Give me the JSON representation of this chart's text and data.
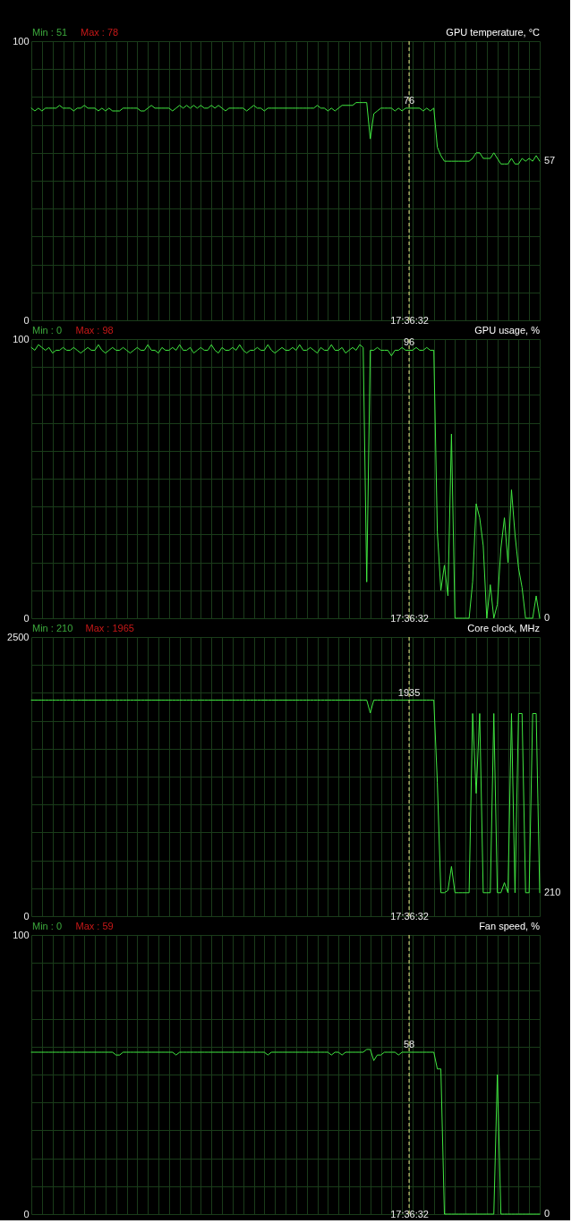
{
  "chart_data": [
    {
      "type": "line",
      "title": "GPU temperature, °C",
      "annotations": [
        "Min : 51",
        "Max : 78"
      ],
      "categories": [
        null,
        null,
        null,
        null,
        null,
        null,
        null,
        null,
        null,
        null,
        null,
        null,
        null,
        null,
        null,
        null,
        null,
        null,
        null,
        null,
        null,
        null,
        null,
        null,
        null,
        null,
        null,
        null,
        null,
        null,
        null,
        null,
        null,
        null,
        null,
        null,
        null,
        null,
        null,
        null,
        null,
        null,
        null,
        null,
        null,
        null,
        null,
        null,
        null,
        null,
        null,
        null,
        null,
        null,
        null,
        null,
        null,
        null,
        null,
        null,
        null,
        null,
        null,
        null,
        null,
        null,
        null,
        null,
        null,
        null,
        null,
        null,
        null,
        null,
        null,
        null,
        null,
        null,
        null,
        null,
        null,
        null,
        null,
        null,
        null,
        null,
        null,
        null,
        null,
        null,
        null,
        null,
        null,
        null,
        null,
        null,
        null,
        null,
        null,
        null,
        null,
        null,
        null,
        null,
        null,
        null,
        null,
        "17:36:32",
        null,
        null,
        null,
        null,
        null,
        null,
        null,
        null,
        null,
        null,
        null,
        null,
        null,
        null,
        null,
        null,
        null,
        null,
        null,
        null,
        null,
        null,
        null,
        null,
        null,
        null,
        null,
        null,
        null,
        null,
        null,
        null,
        null,
        null,
        null,
        null,
        null
      ],
      "series": [
        {
          "color": "#40e840",
          "values": [
            76,
            75,
            76,
            75,
            76,
            76,
            76,
            76,
            77,
            76,
            76,
            76,
            75,
            76,
            76,
            77,
            76,
            76,
            76,
            75,
            76,
            75,
            76,
            75,
            75,
            75,
            76,
            76,
            76,
            76,
            76,
            75,
            75,
            76,
            77,
            76,
            76,
            76,
            76,
            76,
            75,
            76,
            77,
            76,
            77,
            76,
            77,
            76,
            77,
            76,
            76,
            77,
            76,
            77,
            76,
            75,
            76,
            76,
            76,
            76,
            76,
            75,
            76,
            77,
            76,
            76,
            75,
            76,
            76,
            76,
            76,
            76,
            76,
            76,
            76,
            76,
            76,
            76,
            76,
            76,
            76,
            77,
            76,
            76,
            75,
            76,
            75,
            76,
            77,
            77,
            77,
            77,
            78,
            78,
            78,
            78,
            65,
            74,
            75,
            76,
            76,
            76,
            76,
            75,
            76,
            75,
            76,
            76,
            76,
            76,
            76,
            75,
            76,
            75,
            76,
            62,
            59,
            57,
            57,
            57,
            57,
            57,
            57,
            57,
            57,
            58,
            60,
            60,
            58,
            58,
            58,
            60,
            58,
            56,
            56,
            56,
            58,
            56,
            56,
            58,
            57,
            58,
            57,
            59,
            57
          ],
          "value_labels": [
            null,
            null,
            null,
            null,
            null,
            null,
            null,
            null,
            null,
            null,
            null,
            null,
            null,
            null,
            null,
            null,
            null,
            null,
            null,
            null,
            null,
            null,
            null,
            null,
            null,
            null,
            null,
            null,
            null,
            null,
            null,
            null,
            null,
            null,
            null,
            null,
            null,
            null,
            null,
            null,
            null,
            null,
            null,
            null,
            null,
            null,
            null,
            null,
            null,
            null,
            null,
            null,
            null,
            null,
            null,
            null,
            null,
            null,
            null,
            null,
            null,
            null,
            null,
            null,
            null,
            null,
            null,
            null,
            null,
            null,
            null,
            null,
            null,
            null,
            null,
            null,
            null,
            null,
            null,
            null,
            null,
            null,
            null,
            null,
            null,
            null,
            null,
            null,
            null,
            null,
            null,
            null,
            null,
            null,
            null,
            null,
            null,
            null,
            null,
            null,
            null,
            null,
            null,
            null,
            null,
            null,
            null,
            "76",
            null,
            null,
            null,
            null,
            null,
            null,
            null,
            null,
            null,
            null,
            null,
            null,
            null,
            null,
            null,
            null,
            null,
            null,
            null,
            null,
            null,
            null,
            null,
            null,
            null,
            null,
            null,
            null,
            null,
            null,
            null,
            null,
            null,
            null,
            null,
            null,
            "57"
          ]
        }
      ],
      "ylim": [
        0,
        100
      ],
      "yticks": [
        0,
        {
          "value": 10,
          "label": null
        },
        {
          "value": 20,
          "label": null
        },
        {
          "value": 30,
          "label": null
        },
        {
          "value": 40,
          "label": null
        },
        {
          "value": 50,
          "label": null
        },
        {
          "value": 60,
          "label": null
        },
        {
          "value": 70,
          "label": null
        },
        {
          "value": 80,
          "label": null
        },
        {
          "value": 90,
          "label": null
        },
        100
      ],
      "grid": true,
      "ref_lines": [
        {
          "axis": "x",
          "value": "17:36:32",
          "color": "#f0e68c",
          "line_style": "dashed"
        }
      ]
    },
    {
      "type": "line",
      "title": "GPU usage, %",
      "annotations": [
        "Min : 0",
        "Max : 98"
      ],
      "categories": [
        null,
        null,
        null,
        null,
        null,
        null,
        null,
        null,
        null,
        null,
        null,
        null,
        null,
        null,
        null,
        null,
        null,
        null,
        null,
        null,
        null,
        null,
        null,
        null,
        null,
        null,
        null,
        null,
        null,
        null,
        null,
        null,
        null,
        null,
        null,
        null,
        null,
        null,
        null,
        null,
        null,
        null,
        null,
        null,
        null,
        null,
        null,
        null,
        null,
        null,
        null,
        null,
        null,
        null,
        null,
        null,
        null,
        null,
        null,
        null,
        null,
        null,
        null,
        null,
        null,
        null,
        null,
        null,
        null,
        null,
        null,
        null,
        null,
        null,
        null,
        null,
        null,
        null,
        null,
        null,
        null,
        null,
        null,
        null,
        null,
        null,
        null,
        null,
        null,
        null,
        null,
        null,
        null,
        null,
        null,
        null,
        null,
        null,
        null,
        null,
        null,
        null,
        null,
        null,
        null,
        null,
        null,
        "17:36:32",
        null,
        null,
        null,
        null,
        null,
        null,
        null,
        null,
        null,
        null,
        null,
        null,
        null,
        null,
        null,
        null,
        null,
        null,
        null,
        null,
        null,
        null,
        null,
        null,
        null,
        null,
        null,
        null,
        null,
        null,
        null,
        null,
        null,
        null,
        null,
        null,
        null
      ],
      "series": [
        {
          "color": "#40e840",
          "values": [
            97,
            96,
            98,
            97,
            96,
            97,
            95,
            96,
            96,
            97,
            96,
            96,
            97,
            96,
            95,
            96,
            97,
            96,
            96,
            98,
            96,
            95,
            96,
            97,
            96,
            96,
            97,
            96,
            95,
            96,
            97,
            96,
            96,
            98,
            96,
            96,
            95,
            97,
            96,
            96,
            97,
            96,
            98,
            96,
            96,
            97,
            95,
            96,
            97,
            96,
            96,
            98,
            96,
            95,
            97,
            96,
            96,
            97,
            96,
            98,
            96,
            95,
            96,
            96,
            97,
            96,
            96,
            98,
            96,
            95,
            96,
            97,
            96,
            96,
            97,
            96,
            98,
            96,
            96,
            97,
            96,
            95,
            97,
            96,
            96,
            98,
            96,
            96,
            97,
            95,
            96,
            97,
            96,
            98,
            97,
            13,
            96,
            96,
            97,
            96,
            96,
            96,
            94,
            96,
            96,
            97,
            96,
            96,
            96,
            97,
            96,
            96,
            97,
            96,
            96,
            31,
            10,
            19,
            8,
            66,
            0,
            0,
            0,
            0,
            0,
            13,
            41,
            36,
            26,
            0,
            12,
            0,
            5,
            25,
            36,
            20,
            46,
            30,
            18,
            11,
            0,
            0,
            0,
            8,
            0
          ],
          "value_labels": [
            null,
            null,
            null,
            null,
            null,
            null,
            null,
            null,
            null,
            null,
            null,
            null,
            null,
            null,
            null,
            null,
            null,
            null,
            null,
            null,
            null,
            null,
            null,
            null,
            null,
            null,
            null,
            null,
            null,
            null,
            null,
            null,
            null,
            null,
            null,
            null,
            null,
            null,
            null,
            null,
            null,
            null,
            null,
            null,
            null,
            null,
            null,
            null,
            null,
            null,
            null,
            null,
            null,
            null,
            null,
            null,
            null,
            null,
            null,
            null,
            null,
            null,
            null,
            null,
            null,
            null,
            null,
            null,
            null,
            null,
            null,
            null,
            null,
            null,
            null,
            null,
            null,
            null,
            null,
            null,
            null,
            null,
            null,
            null,
            null,
            null,
            null,
            null,
            null,
            null,
            null,
            null,
            null,
            null,
            null,
            null,
            null,
            null,
            null,
            null,
            null,
            null,
            null,
            null,
            null,
            null,
            null,
            "96",
            null,
            null,
            null,
            null,
            null,
            null,
            null,
            null,
            null,
            null,
            null,
            null,
            null,
            null,
            null,
            null,
            null,
            null,
            null,
            null,
            null,
            null,
            null,
            null,
            null,
            null,
            null,
            null,
            null,
            null,
            null,
            null,
            null,
            null,
            null,
            null,
            "0"
          ]
        }
      ],
      "ylim": [
        0,
        100
      ],
      "yticks": [
        0,
        {
          "value": 10,
          "label": null
        },
        {
          "value": 20,
          "label": null
        },
        {
          "value": 30,
          "label": null
        },
        {
          "value": 40,
          "label": null
        },
        {
          "value": 50,
          "label": null
        },
        {
          "value": 60,
          "label": null
        },
        {
          "value": 70,
          "label": null
        },
        {
          "value": 80,
          "label": null
        },
        {
          "value": 90,
          "label": null
        },
        100
      ],
      "grid": true,
      "ref_lines": [
        {
          "axis": "x",
          "value": "17:36:32",
          "color": "#f0e68c",
          "line_style": "dashed"
        }
      ]
    },
    {
      "type": "line",
      "title": "Core clock, MHz",
      "annotations": [
        "Min : 210",
        "Max : 1965"
      ],
      "categories": [
        null,
        null,
        null,
        null,
        null,
        null,
        null,
        null,
        null,
        null,
        null,
        null,
        null,
        null,
        null,
        null,
        null,
        null,
        null,
        null,
        null,
        null,
        null,
        null,
        null,
        null,
        null,
        null,
        null,
        null,
        null,
        null,
        null,
        null,
        null,
        null,
        null,
        null,
        null,
        null,
        null,
        null,
        null,
        null,
        null,
        null,
        null,
        null,
        null,
        null,
        null,
        null,
        null,
        null,
        null,
        null,
        null,
        null,
        null,
        null,
        null,
        null,
        null,
        null,
        null,
        null,
        null,
        null,
        null,
        null,
        null,
        null,
        null,
        null,
        null,
        null,
        null,
        null,
        null,
        null,
        null,
        null,
        null,
        null,
        null,
        null,
        null,
        null,
        null,
        null,
        null,
        null,
        null,
        null,
        null,
        null,
        null,
        null,
        null,
        null,
        null,
        null,
        null,
        null,
        null,
        null,
        null,
        "17:36:32",
        null,
        null,
        null,
        null,
        null,
        null,
        null,
        null,
        null,
        null,
        null,
        null,
        null,
        null,
        null,
        null,
        null,
        null,
        null,
        null,
        null,
        null,
        null,
        null,
        null,
        null,
        null,
        null,
        null,
        null,
        null,
        null,
        null,
        null,
        null,
        null,
        null
      ],
      "series": [
        {
          "color": "#40e840",
          "values": [
            1935,
            1935,
            1935,
            1935,
            1935,
            1935,
            1935,
            1935,
            1935,
            1935,
            1935,
            1935,
            1935,
            1935,
            1935,
            1935,
            1935,
            1935,
            1935,
            1935,
            1935,
            1935,
            1935,
            1935,
            1935,
            1935,
            1935,
            1935,
            1935,
            1935,
            1935,
            1935,
            1935,
            1935,
            1935,
            1935,
            1935,
            1935,
            1935,
            1935,
            1935,
            1935,
            1935,
            1935,
            1935,
            1935,
            1935,
            1935,
            1935,
            1935,
            1935,
            1935,
            1935,
            1935,
            1935,
            1935,
            1935,
            1935,
            1935,
            1935,
            1935,
            1935,
            1935,
            1935,
            1935,
            1935,
            1935,
            1935,
            1935,
            1935,
            1935,
            1935,
            1935,
            1935,
            1935,
            1935,
            1935,
            1935,
            1935,
            1935,
            1935,
            1935,
            1935,
            1935,
            1935,
            1935,
            1935,
            1935,
            1935,
            1935,
            1935,
            1935,
            1935,
            1935,
            1935,
            1935,
            1820,
            1935,
            1935,
            1935,
            1935,
            1935,
            1935,
            1935,
            1935,
            1935,
            1935,
            1935,
            1935,
            1935,
            1935,
            1935,
            1935,
            1935,
            1935,
            1200,
            210,
            210,
            230,
            445,
            210,
            210,
            210,
            210,
            210,
            1815,
            1100,
            1815,
            210,
            210,
            210,
            1815,
            210,
            210,
            300,
            210,
            1815,
            210,
            1815,
            1815,
            210,
            210,
            1815,
            1815,
            210
          ],
          "value_labels": [
            null,
            null,
            null,
            null,
            null,
            null,
            null,
            null,
            null,
            null,
            null,
            null,
            null,
            null,
            null,
            null,
            null,
            null,
            null,
            null,
            null,
            null,
            null,
            null,
            null,
            null,
            null,
            null,
            null,
            null,
            null,
            null,
            null,
            null,
            null,
            null,
            null,
            null,
            null,
            null,
            null,
            null,
            null,
            null,
            null,
            null,
            null,
            null,
            null,
            null,
            null,
            null,
            null,
            null,
            null,
            null,
            null,
            null,
            null,
            null,
            null,
            null,
            null,
            null,
            null,
            null,
            null,
            null,
            null,
            null,
            null,
            null,
            null,
            null,
            null,
            null,
            null,
            null,
            null,
            null,
            null,
            null,
            null,
            null,
            null,
            null,
            null,
            null,
            null,
            null,
            null,
            null,
            null,
            null,
            null,
            null,
            null,
            null,
            null,
            null,
            null,
            null,
            null,
            null,
            null,
            null,
            null,
            "1935",
            null,
            null,
            null,
            null,
            null,
            null,
            null,
            null,
            null,
            null,
            null,
            null,
            null,
            null,
            null,
            null,
            null,
            null,
            null,
            null,
            null,
            null,
            null,
            null,
            null,
            null,
            null,
            null,
            null,
            null,
            null,
            null,
            null,
            null,
            null,
            null,
            "210"
          ]
        }
      ],
      "ylim": [
        0,
        2500
      ],
      "yticks": [
        0,
        {
          "value": 250,
          "label": null
        },
        {
          "value": 500,
          "label": null
        },
        {
          "value": 750,
          "label": null
        },
        {
          "value": 1000,
          "label": null
        },
        {
          "value": 1250,
          "label": null
        },
        {
          "value": 1500,
          "label": null
        },
        {
          "value": 1750,
          "label": null
        },
        {
          "value": 2000,
          "label": null
        },
        {
          "value": 2250,
          "label": null
        },
        2500
      ],
      "grid": true,
      "ref_lines": [
        {
          "axis": "x",
          "value": "17:36:32",
          "color": "#f0e68c",
          "line_style": "dashed"
        }
      ]
    },
    {
      "type": "line",
      "title": "Fan speed, %",
      "annotations": [
        "Min : 0",
        "Max : 59"
      ],
      "categories": [
        null,
        null,
        null,
        null,
        null,
        null,
        null,
        null,
        null,
        null,
        null,
        null,
        null,
        null,
        null,
        null,
        null,
        null,
        null,
        null,
        null,
        null,
        null,
        null,
        null,
        null,
        null,
        null,
        null,
        null,
        null,
        null,
        null,
        null,
        null,
        null,
        null,
        null,
        null,
        null,
        null,
        null,
        null,
        null,
        null,
        null,
        null,
        null,
        null,
        null,
        null,
        null,
        null,
        null,
        null,
        null,
        null,
        null,
        null,
        null,
        null,
        null,
        null,
        null,
        null,
        null,
        null,
        null,
        null,
        null,
        null,
        null,
        null,
        null,
        null,
        null,
        null,
        null,
        null,
        null,
        null,
        null,
        null,
        null,
        null,
        null,
        null,
        null,
        null,
        null,
        null,
        null,
        null,
        null,
        null,
        null,
        null,
        null,
        null,
        null,
        null,
        null,
        null,
        null,
        null,
        null,
        null,
        "17:36:32",
        null,
        null,
        null,
        null,
        null,
        null,
        null,
        null,
        null,
        null,
        null,
        null,
        null,
        null,
        null,
        null,
        null,
        null,
        null,
        null,
        null,
        null,
        null,
        null,
        null,
        null,
        null,
        null,
        null,
        null,
        null,
        null,
        null,
        null,
        null,
        null,
        null
      ],
      "series": [
        {
          "color": "#40e840",
          "values": [
            58,
            58,
            58,
            58,
            58,
            58,
            58,
            58,
            58,
            58,
            58,
            58,
            58,
            58,
            58,
            58,
            58,
            58,
            58,
            58,
            58,
            58,
            58,
            58,
            57,
            57,
            58,
            58,
            58,
            58,
            58,
            58,
            58,
            58,
            58,
            58,
            58,
            58,
            58,
            58,
            58,
            57,
            58,
            58,
            58,
            58,
            58,
            58,
            58,
            58,
            58,
            58,
            58,
            58,
            58,
            58,
            58,
            58,
            58,
            58,
            58,
            58,
            58,
            58,
            58,
            58,
            58,
            57,
            58,
            58,
            58,
            58,
            58,
            58,
            58,
            58,
            58,
            58,
            58,
            58,
            58,
            58,
            58,
            58,
            58,
            57,
            58,
            58,
            57,
            58,
            58,
            58,
            58,
            58,
            58,
            59,
            59,
            55,
            57,
            57,
            58,
            58,
            58,
            58,
            57,
            58,
            58,
            58,
            58,
            58,
            58,
            58,
            58,
            58,
            58,
            52,
            52,
            0,
            0,
            0,
            0,
            0,
            0,
            0,
            0,
            0,
            0,
            0,
            0,
            0,
            0,
            0,
            50,
            0,
            0,
            0,
            0,
            0,
            0,
            0,
            0,
            0,
            0,
            0,
            0
          ],
          "value_labels": [
            null,
            null,
            null,
            null,
            null,
            null,
            null,
            null,
            null,
            null,
            null,
            null,
            null,
            null,
            null,
            null,
            null,
            null,
            null,
            null,
            null,
            null,
            null,
            null,
            null,
            null,
            null,
            null,
            null,
            null,
            null,
            null,
            null,
            null,
            null,
            null,
            null,
            null,
            null,
            null,
            null,
            null,
            null,
            null,
            null,
            null,
            null,
            null,
            null,
            null,
            null,
            null,
            null,
            null,
            null,
            null,
            null,
            null,
            null,
            null,
            null,
            null,
            null,
            null,
            null,
            null,
            null,
            null,
            null,
            null,
            null,
            null,
            null,
            null,
            null,
            null,
            null,
            null,
            null,
            null,
            null,
            null,
            null,
            null,
            null,
            null,
            null,
            null,
            null,
            null,
            null,
            null,
            null,
            null,
            null,
            null,
            null,
            null,
            null,
            null,
            null,
            null,
            null,
            null,
            null,
            null,
            null,
            "58",
            null,
            null,
            null,
            null,
            null,
            null,
            null,
            null,
            null,
            null,
            null,
            null,
            null,
            null,
            null,
            null,
            null,
            null,
            null,
            null,
            null,
            null,
            null,
            null,
            null,
            null,
            null,
            null,
            null,
            null,
            null,
            null,
            null,
            null,
            null,
            null,
            "0"
          ]
        }
      ],
      "ylim": [
        0,
        100
      ],
      "yticks": [
        0,
        {
          "value": 10,
          "label": null
        },
        {
          "value": 20,
          "label": null
        },
        {
          "value": 30,
          "label": null
        },
        {
          "value": 40,
          "label": null
        },
        {
          "value": 50,
          "label": null
        },
        {
          "value": 60,
          "label": null
        },
        {
          "value": 70,
          "label": null
        },
        {
          "value": 80,
          "label": null
        },
        {
          "value": 90,
          "label": null
        },
        100
      ],
      "grid": true,
      "ref_lines": [
        {
          "axis": "x",
          "value": "17:36:32",
          "color": "#f0e68c",
          "line_style": "dashed"
        }
      ]
    }
  ]
}
